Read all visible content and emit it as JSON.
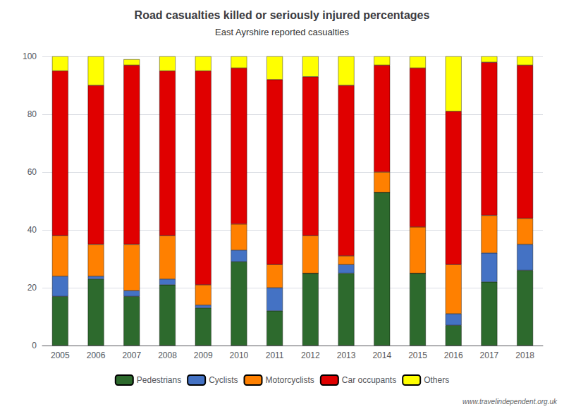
{
  "chart_data": {
    "type": "bar",
    "title": "Road casualties killed or seriously injured percentages",
    "subtitle": "East Ayrshire reported casualties",
    "categories": [
      "2005",
      "2006",
      "2007",
      "2008",
      "2009",
      "2010",
      "2011",
      "2012",
      "2013",
      "2014",
      "2015",
      "2016",
      "2017",
      "2018"
    ],
    "series": [
      {
        "name": "Pedestrians",
        "color": "#2d6a2d",
        "values": [
          17,
          23,
          17,
          21,
          13,
          29,
          12,
          25,
          25,
          53,
          25,
          7,
          22,
          26
        ]
      },
      {
        "name": "Cyclists",
        "color": "#4472c4",
        "values": [
          7,
          1,
          2,
          2,
          1,
          4,
          8,
          0,
          3,
          0,
          0,
          4,
          10,
          9
        ]
      },
      {
        "name": "Motorcyclists",
        "color": "#ff8000",
        "values": [
          14,
          11,
          16,
          15,
          7,
          9,
          8,
          13,
          3,
          7,
          16,
          17,
          13,
          9
        ]
      },
      {
        "name": "Car occupants",
        "color": "#e00000",
        "values": [
          57,
          55,
          62,
          57,
          74,
          54,
          64,
          55,
          59,
          37,
          55,
          53,
          53,
          53
        ]
      },
      {
        "name": "Others",
        "color": "#ffff00",
        "values": [
          5,
          10,
          2,
          5,
          5,
          4,
          8,
          7,
          10,
          3,
          4,
          19,
          2,
          3
        ]
      }
    ],
    "stacked": true,
    "ylim": [
      0,
      100
    ],
    "yticks": [
      0,
      20,
      40,
      60,
      80,
      100
    ],
    "grid": true,
    "legend": "bottom",
    "annotations": [
      "www.travelindependent.org.uk"
    ]
  }
}
